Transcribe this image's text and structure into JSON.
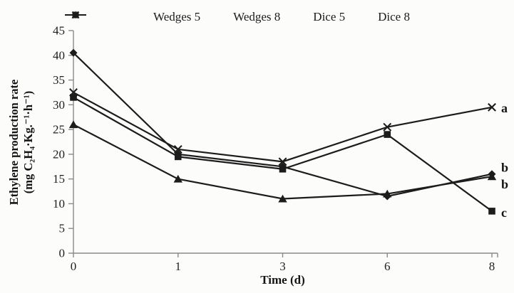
{
  "figure": {
    "background": "#fcfcfb",
    "series_color": "#1c1c1c",
    "axis_color": "#8a8a8a",
    "tick_label_color": "#1f1f1f"
  },
  "chart_data": {
    "type": "line",
    "title": "",
    "xlabel": "Time (d)",
    "ylabel_line1": "Ethylene production rate",
    "ylabel_line2": "(mg C₂H₄·Kg.⁻¹·h⁻¹)",
    "categories": [
      "0",
      "1",
      "3",
      "6",
      "8"
    ],
    "x_numeric": [
      0,
      1,
      3,
      6,
      8
    ],
    "ylim": [
      0,
      45
    ],
    "y_ticks": [
      0,
      5,
      10,
      15,
      20,
      25,
      30,
      35,
      40,
      45
    ],
    "grid": false,
    "legend_position": "top",
    "series": [
      {
        "name": "Wedges 5",
        "marker": "diamond",
        "values": [
          40.5,
          20,
          17.5,
          11.5,
          16
        ],
        "end_label": "b",
        "end_label_dy": -9
      },
      {
        "name": "Wedges 8",
        "marker": "square",
        "values": [
          31.5,
          19.5,
          17,
          24,
          8.5
        ],
        "end_label": "c",
        "end_label_dy": 2
      },
      {
        "name": "Dice 5",
        "marker": "triangle",
        "values": [
          26,
          15,
          11,
          12,
          15.5
        ],
        "end_label": "b",
        "end_label_dy": 11
      },
      {
        "name": "Dice 8",
        "marker": "x",
        "values": [
          32.5,
          21,
          18.5,
          25.5,
          29.5
        ],
        "end_label": "a",
        "end_label_dy": 1
      }
    ]
  }
}
